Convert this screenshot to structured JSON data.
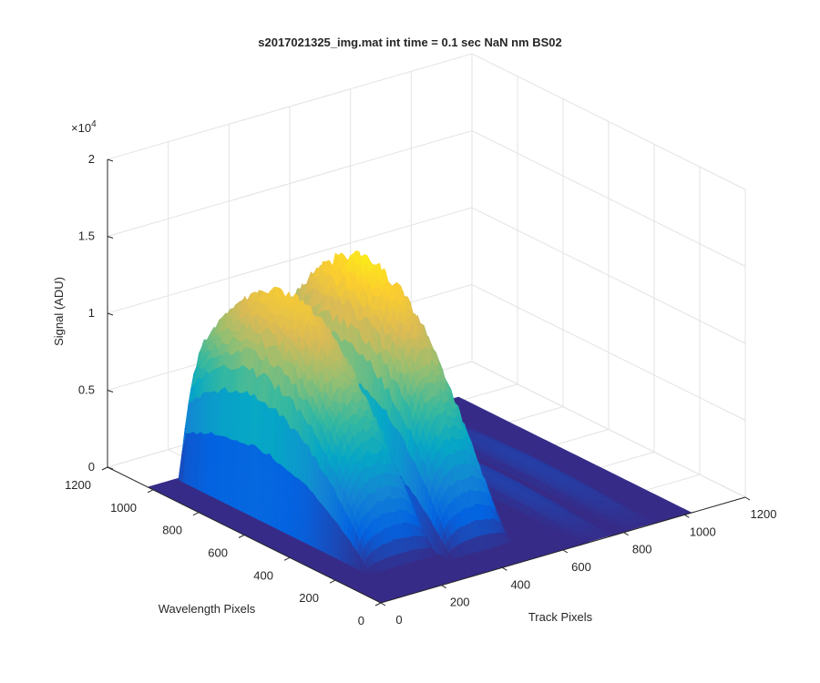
{
  "chart_data": {
    "type": "surface",
    "title": "s2017021325_img.mat int time = 0.1 sec  NaN nm BS02",
    "xlabel": "Track Pixels",
    "ylabel": "Wavelength Pixels",
    "zlabel": "Signal (ADU)",
    "z_exponent_label": "×10",
    "z_exponent": "4",
    "xlim": [
      0,
      1200
    ],
    "ylim": [
      0,
      1200
    ],
    "zlim": [
      0,
      20000
    ],
    "x_ticks": [
      0,
      200,
      400,
      600,
      800,
      1000,
      1200
    ],
    "y_ticks": [
      0,
      200,
      400,
      600,
      800,
      1000,
      1200
    ],
    "z_ticks": [
      0,
      5000,
      10000,
      15000,
      20000
    ],
    "x_tick_labels": [
      "0",
      "200",
      "400",
      "600",
      "800",
      "1000",
      "1200"
    ],
    "y_tick_labels": [
      "0",
      "200",
      "400",
      "600",
      "800",
      "1000",
      "1200"
    ],
    "z_tick_labels": [
      "0",
      "0.5",
      "1",
      "1.5",
      "2"
    ],
    "grid": true,
    "colormap": "parula",
    "colormap_colors": [
      "#352a87",
      "#0363e1",
      "#1485d4",
      "#06a7c6",
      "#38b99e",
      "#92bf73",
      "#d9ba56",
      "#fcce2e",
      "#f9fb0e"
    ],
    "data_extent": {
      "x": [
        0,
        1024
      ],
      "y": [
        0,
        1024
      ]
    },
    "peaks": [
      {
        "name_hint": "peak 1",
        "track_center": 210,
        "track_width": 110,
        "wavelength_max_at": 700,
        "max_signal": 14000
      },
      {
        "name_hint": "peak 2",
        "track_center": 430,
        "track_width": 100,
        "wavelength_max_at": 650,
        "max_signal": 15500
      },
      {
        "name_hint": "peak 3",
        "track_center": 720,
        "track_width": 45,
        "wavelength_max_at": 500,
        "max_signal": 800
      },
      {
        "name_hint": "peak 4",
        "track_center": 860,
        "track_width": 45,
        "wavelength_max_at": 500,
        "max_signal": 700
      }
    ]
  }
}
